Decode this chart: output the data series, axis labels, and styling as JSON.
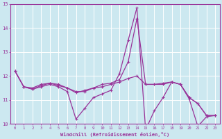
{
  "xlabel": "Windchill (Refroidissement éolien,°C)",
  "background_color": "#cce8f0",
  "line_color": "#993399",
  "grid_color": "#ffffff",
  "xlim": [
    -0.5,
    23.5
  ],
  "ylim": [
    10,
    15
  ],
  "yticks": [
    10,
    11,
    12,
    13,
    14,
    15
  ],
  "xticks": [
    0,
    1,
    2,
    3,
    4,
    5,
    6,
    7,
    8,
    9,
    10,
    11,
    12,
    13,
    14,
    15,
    16,
    17,
    18,
    19,
    20,
    21,
    22,
    23
  ],
  "line1_x": [
    0,
    1,
    2,
    3,
    4,
    5,
    6,
    7,
    8,
    9,
    10,
    11,
    12,
    13,
    14,
    15,
    16,
    17,
    18,
    19,
    20,
    21,
    22,
    23
  ],
  "line1_y": [
    12.2,
    11.55,
    11.45,
    11.55,
    11.65,
    11.55,
    11.35,
    10.2,
    10.65,
    11.1,
    11.25,
    11.4,
    12.1,
    13.5,
    14.85,
    9.75,
    10.55,
    11.1,
    11.75,
    11.65,
    11.05,
    9.9,
    10.3,
    10.35
  ],
  "line2_x": [
    0,
    1,
    2,
    3,
    4,
    5,
    6,
    7,
    8,
    9,
    10,
    11,
    12,
    13,
    14,
    15,
    16,
    17,
    18,
    19,
    20,
    21,
    22,
    23
  ],
  "line2_y": [
    12.2,
    11.55,
    11.5,
    11.65,
    11.7,
    11.65,
    11.5,
    11.35,
    11.35,
    11.5,
    11.65,
    11.7,
    11.85,
    12.6,
    14.4,
    11.65,
    11.65,
    11.7,
    11.75,
    11.65,
    11.1,
    10.85,
    10.35,
    10.35
  ],
  "line3_x": [
    0,
    1,
    2,
    3,
    4,
    5,
    6,
    7,
    8,
    9,
    10,
    11,
    12,
    13,
    14,
    15,
    16,
    17,
    18,
    19,
    20,
    21,
    22,
    23
  ],
  "line3_y": [
    12.2,
    11.55,
    11.45,
    11.6,
    11.7,
    11.6,
    11.5,
    11.3,
    11.4,
    11.5,
    11.55,
    11.65,
    11.75,
    11.9,
    12.0,
    11.65,
    11.65,
    11.65,
    11.75,
    11.65,
    11.1,
    10.85,
    10.35,
    10.35
  ]
}
